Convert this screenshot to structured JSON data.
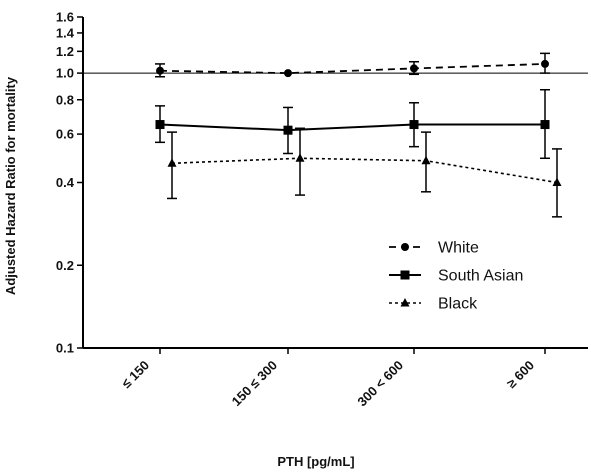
{
  "chart_data": {
    "type": "line",
    "xlabel": "PTH [pg/mL]",
    "ylabel": "Adjusted Hazard Ratio for mortality",
    "y_scale": "log",
    "ylim": [
      0.1,
      1.6
    ],
    "yticks": [
      0.1,
      0.2,
      0.4,
      0.6,
      0.8,
      1.0,
      1.2,
      1.4,
      1.6
    ],
    "ytick_labels": [
      "0.1",
      "0.2",
      "0.4",
      "0.6",
      "0.8",
      "1.0",
      "1.2",
      "1.4",
      "1.6"
    ],
    "categories": [
      "≤ 150",
      "150 ≤ 300",
      "300 < 600",
      "≥ 600"
    ],
    "reference_line": 1.0,
    "legend_position": "lower-right",
    "series": [
      {
        "name": "White",
        "marker": "circle",
        "line": "dashed",
        "values": [
          1.02,
          1.0,
          1.04,
          1.08
        ],
        "ci_low": [
          0.97,
          null,
          0.99,
          1.0
        ],
        "ci_high": [
          1.08,
          null,
          1.1,
          1.18
        ]
      },
      {
        "name": "South Asian",
        "marker": "square",
        "line": "solid",
        "values": [
          0.65,
          0.62,
          0.65,
          0.65
        ],
        "ci_low": [
          0.56,
          0.51,
          0.54,
          0.49
        ],
        "ci_high": [
          0.76,
          0.75,
          0.78,
          0.87
        ]
      },
      {
        "name": "Black",
        "marker": "triangle",
        "line": "dotted",
        "values": [
          0.47,
          0.49,
          0.48,
          0.4
        ],
        "ci_low": [
          0.35,
          0.36,
          0.37,
          0.3
        ],
        "ci_high": [
          0.61,
          0.63,
          0.61,
          0.53
        ]
      }
    ]
  }
}
